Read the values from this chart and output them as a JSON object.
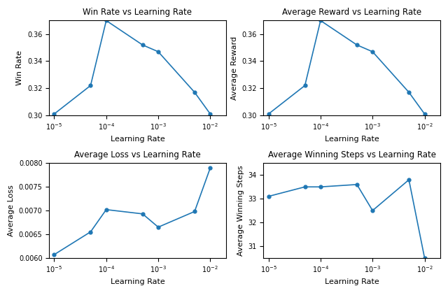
{
  "learning_rates": [
    1e-05,
    5e-05,
    0.0001,
    0.0005,
    0.001,
    0.005,
    0.01
  ],
  "win_rate": [
    0.301,
    0.322,
    0.37,
    0.352,
    0.347,
    0.317,
    0.301
  ],
  "avg_reward": [
    0.301,
    0.322,
    0.37,
    0.352,
    0.347,
    0.317,
    0.301
  ],
  "avg_loss": [
    0.00607,
    0.00655,
    0.00702,
    0.00693,
    0.00665,
    0.00698,
    0.0079
  ],
  "avg_winning_steps": [
    33.1,
    33.5,
    33.5,
    33.6,
    32.5,
    33.8,
    30.5
  ],
  "titles": [
    "Win Rate vs Learning Rate",
    "Average Reward vs Learning Rate",
    "Average Loss vs Learning Rate",
    "Average Winning Steps vs Learning Rate"
  ],
  "ylabels": [
    "Win Rate",
    "Average Reward",
    "Average Loss",
    "Average Winning Steps"
  ],
  "xlabel": "Learning Rate",
  "line_color": "#1f77b4",
  "marker": "o",
  "marker_size": 3.5,
  "linewidth": 1.2,
  "win_rate_ylim": [
    0.3,
    0.37
  ],
  "avg_reward_ylim": [
    0.3,
    0.37
  ],
  "avg_loss_ylim": [
    0.006,
    0.008
  ],
  "avg_winning_steps_ylim": [
    30.5,
    34.5
  ],
  "xticks": [
    1e-05,
    0.0001,
    0.001,
    0.01
  ],
  "xtick_labels": [
    "$10^{-5}$",
    "$10^{-4}$",
    "$10^{-3}$",
    "$10^{-2}$"
  ],
  "title_fontsize": 8.5,
  "label_fontsize": 8,
  "tick_fontsize": 7
}
